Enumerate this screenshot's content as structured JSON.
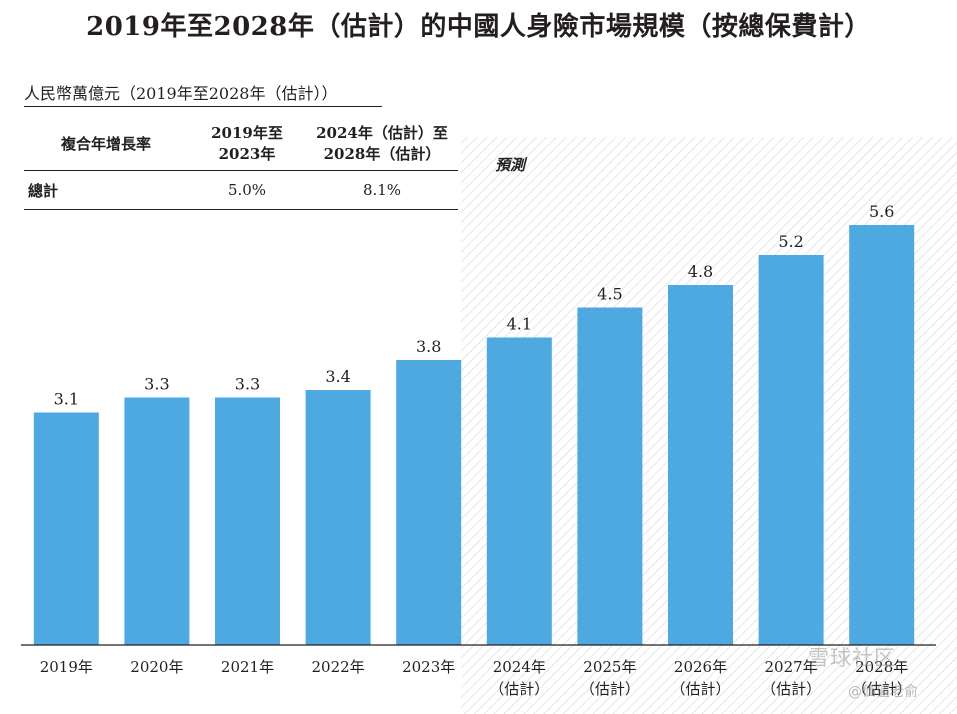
{
  "title": "2019年至2028年（估計）的中國人身險市場規模（按總保費計）",
  "unit_label": "人民幣萬億元（2019年至2028年（估計））",
  "cagr_table": {
    "header": [
      "複合年增長率",
      "2019年至\n2023年",
      "2024年（估計）至\n2028年（估計）"
    ],
    "rows": [
      {
        "label": "總計",
        "v1": "5.0%",
        "v2": "8.1%"
      }
    ]
  },
  "forecast_label": "預測",
  "watermark": {
    "main": "雪球社区",
    "sub": "@価值老俞"
  },
  "colors": {
    "bar": "#4EA9E0",
    "hatch": "#d9d9d9",
    "axis": "#231f20"
  },
  "chart_data": {
    "type": "bar",
    "title": "2019年至2028年（估計）的中國人身險市場規模（按總保費計）",
    "ylabel": "人民幣萬億元（2019年至2028年（估計））",
    "xlabel": "",
    "categories": [
      "2019年",
      "2020年",
      "2021年",
      "2022年",
      "2023年",
      "2024年\n（估計）",
      "2025年\n（估計）",
      "2026年\n（估計）",
      "2027年\n（估計）",
      "2028年\n（估計）"
    ],
    "values": [
      3.1,
      3.3,
      3.3,
      3.4,
      3.8,
      4.1,
      4.5,
      4.8,
      5.2,
      5.6
    ],
    "value_labels": [
      "3.1",
      "3.3",
      "3.3",
      "3.4",
      "3.8",
      "4.1",
      "4.5",
      "4.8",
      "5.2",
      "5.6"
    ],
    "forecast_start_index": 5,
    "ylim": [
      0,
      5.6
    ],
    "grid": false,
    "legend": "none"
  }
}
